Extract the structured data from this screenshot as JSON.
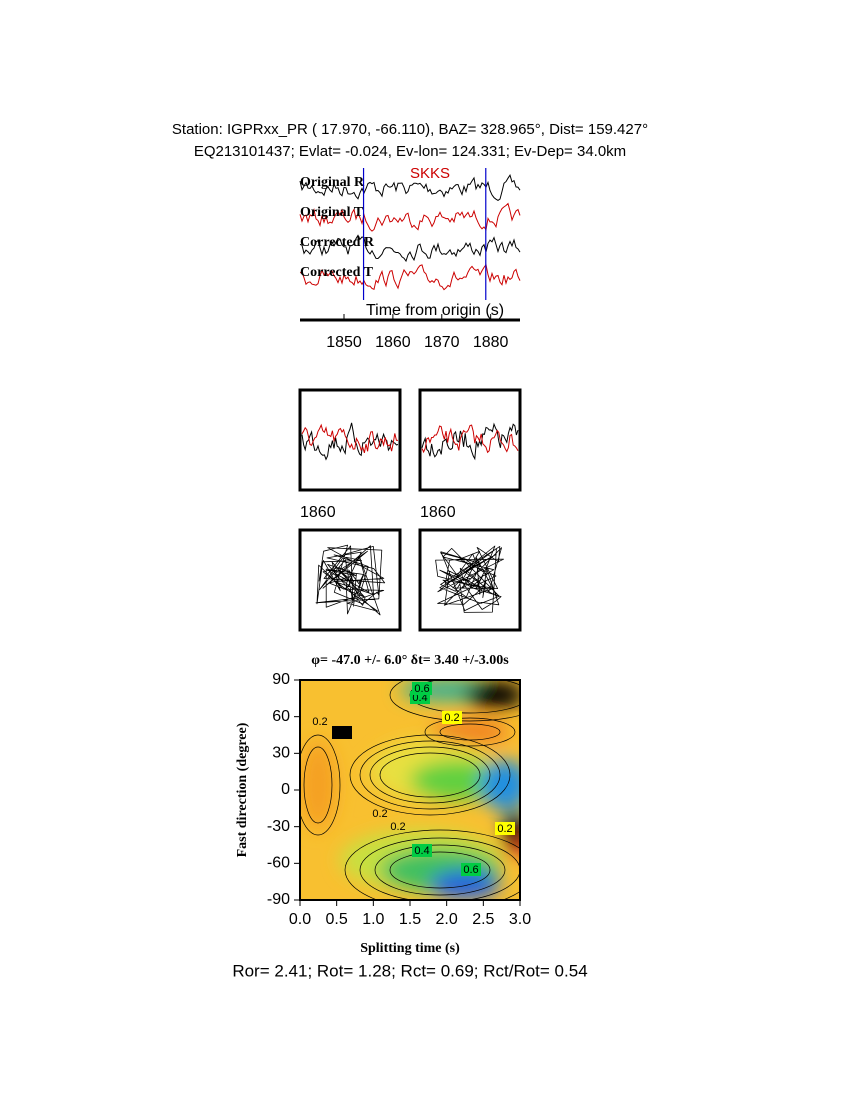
{
  "header": {
    "line1": "Station: IGPRxx_PR (  17.970,  -66.110), BAZ=  328.965°, Dist=  159.427°",
    "line2": "EQ213101437; Evlat=  -0.024, Ev-lon= 124.331; Ev-Dep= 34.0km"
  },
  "chart_data": [
    {
      "type": "waveform",
      "trace_labels": [
        "Original R",
        "Original T",
        "Corrected R",
        "Corrected T"
      ],
      "phase": "SKKS",
      "xlabel": "Time from origin (s)",
      "xlim": [
        1841,
        1886
      ],
      "xticks": [
        1850,
        1860,
        1870,
        1880
      ],
      "window": [
        1854,
        1879
      ],
      "colors": [
        "#000000",
        "#cc0000",
        "#000000",
        "#cc0000"
      ]
    },
    {
      "type": "window-comparison",
      "panel_ticks": [
        1860,
        1860
      ]
    },
    {
      "type": "contour",
      "title": "φ= -47.0 +/- 6.0° δt= 3.40 +/-3.00s",
      "xlabel": "Splitting time (s)",
      "ylabel": "Fast direction (degree)",
      "xlim": [
        0,
        3
      ],
      "ylim": [
        -90,
        90
      ],
      "xticks": [
        {
          "value": 0,
          "label": "0.0"
        },
        0.5,
        {
          "value": 1,
          "label": "1.0"
        },
        1.5,
        {
          "value": 2,
          "label": "2.0"
        },
        2.5,
        {
          "value": 3,
          "label": "3.0"
        }
      ],
      "yticks": [
        -90,
        -60,
        -30,
        0,
        30,
        60,
        90
      ],
      "contour_labels": [
        0.2,
        0.2,
        0.2,
        0.2,
        0.2,
        0.2,
        0.4,
        0.4,
        0.6,
        0.6
      ]
    }
  ],
  "footer": "Ror= 2.41; Rot= 1.28; Rct= 0.69; Rct/Rot= 0.54"
}
